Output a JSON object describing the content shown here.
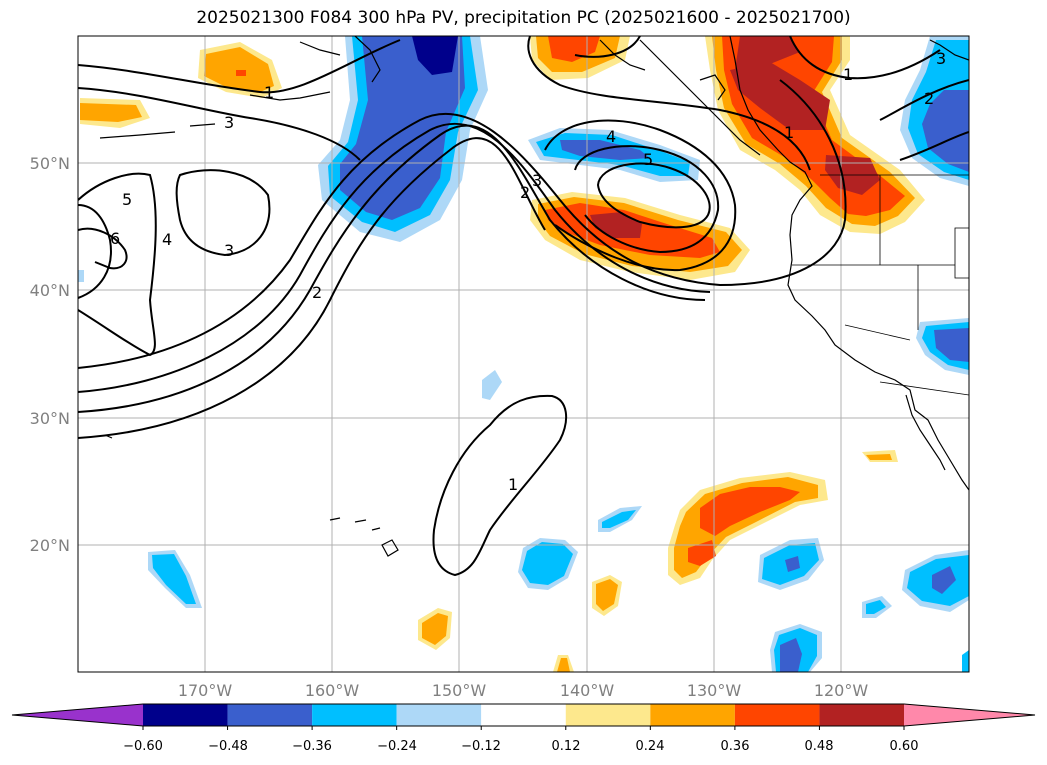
{
  "title": "2025021300 F084 300 hPa PV, precipitation PC (2025021600 - 2025021700)",
  "map": {
    "lon_labels": [
      "170°W",
      "160°W",
      "150°W",
      "140°W",
      "130°W",
      "120°W"
    ],
    "lat_labels": [
      "50°N",
      "40°N",
      "30°N",
      "20°N"
    ],
    "contour_labels": [
      "1",
      "2",
      "3",
      "4",
      "5",
      "6"
    ],
    "colors": {
      "gridline": "#b0b0b0",
      "axis_label": "#808080",
      "pv_contour": "#000000",
      "coastline": "#000000"
    }
  },
  "colorbar": {
    "ticks": [
      "−0.60",
      "−0.48",
      "−0.36",
      "−0.24",
      "−0.12",
      "0.12",
      "0.24",
      "0.36",
      "0.48",
      "0.60"
    ],
    "bins": [
      {
        "range": "< -0.60",
        "color": "#9932cc"
      },
      {
        "range": "-0.60 to -0.48",
        "color": "#00008b"
      },
      {
        "range": "-0.48 to -0.36",
        "color": "#3a5fcd"
      },
      {
        "range": "-0.36 to -0.24",
        "color": "#00bfff"
      },
      {
        "range": "-0.24 to -0.12",
        "color": "#add8f7"
      },
      {
        "range": "-0.12 to 0.12",
        "color": "#ffffff"
      },
      {
        "range": "0.12 to 0.24",
        "color": "#fde88d"
      },
      {
        "range": "0.24 to 0.36",
        "color": "#ffa500"
      },
      {
        "range": "0.36 to 0.48",
        "color": "#ff4500"
      },
      {
        "range": "0.48 to 0.60",
        "color": "#b22222"
      },
      {
        "range": "> 0.60",
        "color": "#ff88aa"
      }
    ]
  }
}
